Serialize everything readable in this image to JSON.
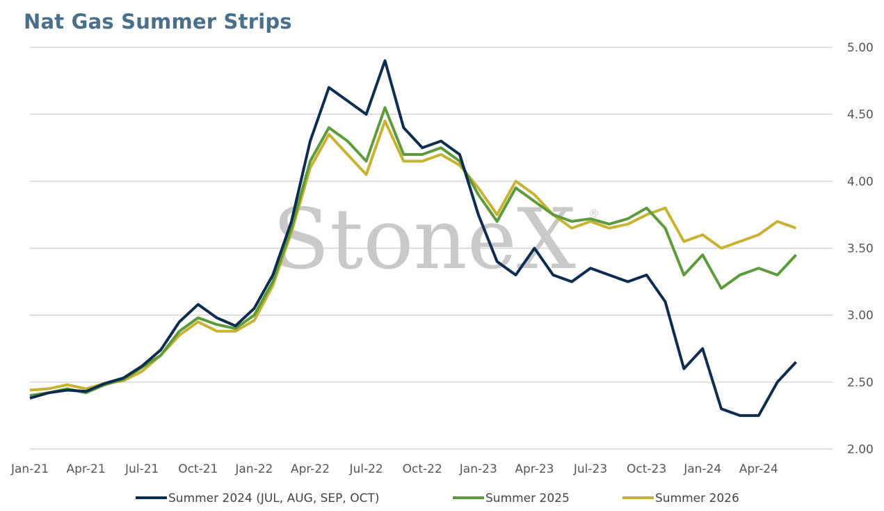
{
  "title": "Nat Gas Summer Strips",
  "watermark": "StoneX",
  "colors": {
    "s2024": "#0e2c4e",
    "s2025": "#5c9a3b",
    "s2026": "#c8b232",
    "grid": "#d4d4d4",
    "title": "#4a6f8a"
  },
  "chart_data": {
    "type": "line",
    "title": "Nat Gas Summer Strips",
    "xlabel": "",
    "ylabel": "",
    "ylim": [
      2.0,
      5.0
    ],
    "y_ticks": [
      "5.00",
      "4.50",
      "4.00",
      "3.50",
      "3.00",
      "2.50",
      "2.00"
    ],
    "x_ticks": [
      "Jan-21",
      "Apr-21",
      "Jul-21",
      "Oct-21",
      "Jan-22",
      "Apr-22",
      "Jul-22",
      "Oct-22",
      "Jan-23",
      "Apr-23",
      "Jul-23",
      "Oct-23",
      "Jan-24",
      "Apr-24"
    ],
    "grid": true,
    "legend_position": "bottom",
    "x": [
      "2021-01",
      "2021-02",
      "2021-03",
      "2021-04",
      "2021-05",
      "2021-06",
      "2021-07",
      "2021-08",
      "2021-09",
      "2021-10",
      "2021-11",
      "2021-12",
      "2022-01",
      "2022-02",
      "2022-03",
      "2022-04",
      "2022-05",
      "2022-06",
      "2022-07",
      "2022-08",
      "2022-09",
      "2022-10",
      "2022-11",
      "2022-12",
      "2023-01",
      "2023-02",
      "2023-03",
      "2023-04",
      "2023-05",
      "2023-06",
      "2023-07",
      "2023-08",
      "2023-09",
      "2023-10",
      "2023-11",
      "2023-12",
      "2024-01",
      "2024-02",
      "2024-03",
      "2024-04",
      "2024-05",
      "2024-06"
    ],
    "series": [
      {
        "name": "Summer 2024 (JUL, AUG, SEP, OCT)",
        "color": "#0e2c4e",
        "values": [
          2.38,
          2.42,
          2.44,
          2.43,
          2.49,
          2.53,
          2.62,
          2.74,
          2.95,
          3.08,
          2.98,
          2.92,
          3.05,
          3.3,
          3.7,
          4.3,
          4.7,
          4.6,
          4.5,
          4.9,
          4.4,
          4.25,
          4.3,
          4.2,
          3.75,
          3.4,
          3.3,
          3.5,
          3.3,
          3.25,
          3.35,
          3.3,
          3.25,
          3.3,
          3.1,
          2.6,
          2.75,
          2.3,
          2.25,
          2.25,
          2.5,
          2.65
        ]
      },
      {
        "name": "Summer 2025",
        "color": "#5c9a3b",
        "values": [
          2.4,
          2.42,
          2.45,
          2.42,
          2.48,
          2.52,
          2.61,
          2.7,
          2.88,
          2.98,
          2.93,
          2.9,
          3.0,
          3.25,
          3.65,
          4.15,
          4.4,
          4.3,
          4.15,
          4.55,
          4.2,
          4.2,
          4.25,
          4.15,
          3.9,
          3.7,
          3.95,
          3.85,
          3.75,
          3.7,
          3.72,
          3.68,
          3.72,
          3.8,
          3.65,
          3.3,
          3.45,
          3.2,
          3.3,
          3.35,
          3.3,
          3.45
        ]
      },
      {
        "name": "Summer 2026",
        "color": "#c8b232",
        "values": [
          2.44,
          2.45,
          2.48,
          2.45,
          2.49,
          2.51,
          2.58,
          2.7,
          2.85,
          2.95,
          2.88,
          2.88,
          2.96,
          3.22,
          3.62,
          4.1,
          4.35,
          4.2,
          4.05,
          4.45,
          4.15,
          4.15,
          4.2,
          4.12,
          3.95,
          3.75,
          4.0,
          3.9,
          3.75,
          3.65,
          3.7,
          3.65,
          3.68,
          3.75,
          3.8,
          3.55,
          3.6,
          3.5,
          3.55,
          3.6,
          3.7,
          3.65
        ]
      }
    ]
  },
  "legend": {
    "s2024": "Summer 2024 (JUL, AUG, SEP, OCT)",
    "s2025": "Summer 2025",
    "s2026": "Summer 2026"
  }
}
